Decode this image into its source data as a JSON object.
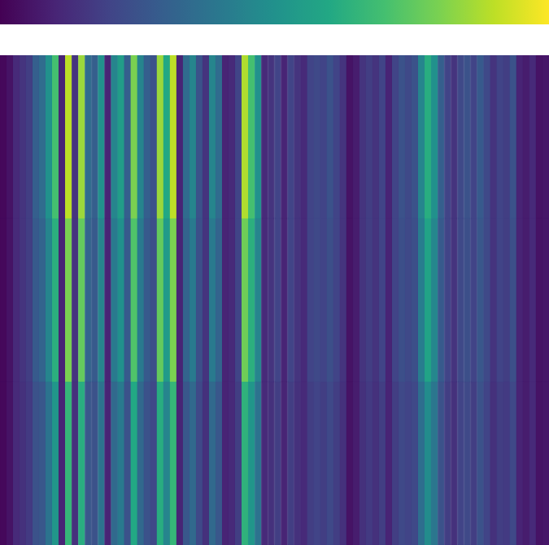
{
  "chart_data": {
    "type": "heatmap",
    "color": "viridis",
    "tick_labels": false,
    "colorbar": {
      "range": [
        0,
        1
      ]
    },
    "cells": [
      [
        0.02,
        0.05,
        0.12,
        0.15,
        0.18,
        0.3,
        0.35,
        0.5,
        0.7,
        0.1,
        0.9,
        0.15,
        0.85,
        0.35,
        0.3,
        0.5,
        0.1,
        0.45,
        0.55,
        0.3,
        0.8,
        0.45,
        0.3,
        0.25,
        0.85,
        0.6,
        0.9,
        0.1,
        0.35,
        0.45,
        0.25,
        0.15,
        0.45,
        0.35,
        0.1,
        0.12,
        0.2,
        0.88,
        0.7,
        0.5,
        0.12,
        0.15,
        0.2,
        0.1,
        0.2,
        0.15,
        0.12,
        0.2,
        0.22,
        0.2,
        0.25,
        0.2,
        0.15,
        0.05,
        0.08,
        0.15,
        0.18,
        0.15,
        0.2,
        0.1,
        0.2,
        0.25,
        0.22,
        0.25,
        0.45,
        0.62,
        0.5,
        0.3,
        0.2,
        0.15,
        0.22,
        0.25,
        0.2,
        0.28,
        0.22,
        0.15,
        0.2,
        0.18,
        0.25,
        0.1,
        0.08,
        0.12,
        0.05,
        0.06
      ],
      [
        0.02,
        0.05,
        0.12,
        0.15,
        0.18,
        0.28,
        0.32,
        0.45,
        0.63,
        0.1,
        0.8,
        0.15,
        0.76,
        0.32,
        0.28,
        0.45,
        0.1,
        0.41,
        0.5,
        0.28,
        0.72,
        0.41,
        0.28,
        0.24,
        0.76,
        0.54,
        0.8,
        0.1,
        0.32,
        0.41,
        0.24,
        0.15,
        0.41,
        0.32,
        0.1,
        0.12,
        0.2,
        0.78,
        0.63,
        0.45,
        0.12,
        0.15,
        0.2,
        0.1,
        0.2,
        0.15,
        0.12,
        0.2,
        0.22,
        0.2,
        0.24,
        0.2,
        0.15,
        0.05,
        0.08,
        0.15,
        0.18,
        0.15,
        0.2,
        0.1,
        0.2,
        0.24,
        0.22,
        0.24,
        0.42,
        0.58,
        0.46,
        0.28,
        0.2,
        0.15,
        0.22,
        0.24,
        0.2,
        0.27,
        0.22,
        0.15,
        0.2,
        0.18,
        0.24,
        0.1,
        0.08,
        0.12,
        0.05,
        0.06
      ],
      [
        0.02,
        0.05,
        0.12,
        0.14,
        0.17,
        0.25,
        0.27,
        0.38,
        0.52,
        0.1,
        0.66,
        0.14,
        0.62,
        0.27,
        0.25,
        0.38,
        0.1,
        0.34,
        0.41,
        0.25,
        0.6,
        0.34,
        0.25,
        0.22,
        0.62,
        0.45,
        0.66,
        0.1,
        0.27,
        0.34,
        0.22,
        0.14,
        0.34,
        0.27,
        0.1,
        0.12,
        0.18,
        0.64,
        0.52,
        0.38,
        0.12,
        0.14,
        0.18,
        0.1,
        0.18,
        0.14,
        0.12,
        0.18,
        0.2,
        0.18,
        0.22,
        0.18,
        0.14,
        0.05,
        0.08,
        0.14,
        0.17,
        0.14,
        0.18,
        0.1,
        0.18,
        0.22,
        0.2,
        0.22,
        0.36,
        0.48,
        0.39,
        0.25,
        0.18,
        0.14,
        0.2,
        0.22,
        0.18,
        0.25,
        0.2,
        0.14,
        0.18,
        0.17,
        0.22,
        0.1,
        0.08,
        0.12,
        0.05,
        0.06
      ]
    ]
  }
}
